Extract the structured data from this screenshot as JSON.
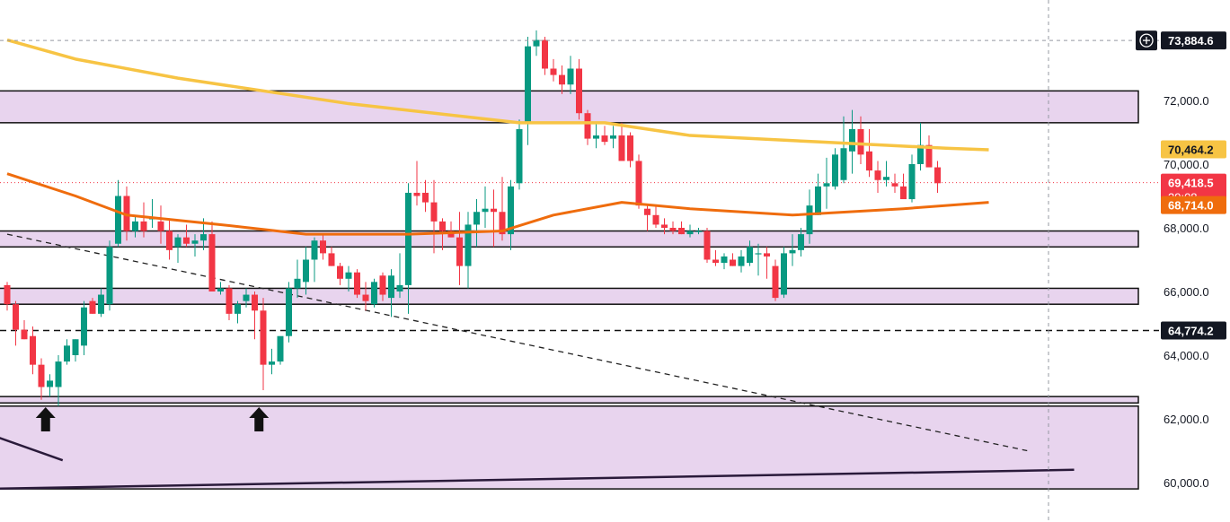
{
  "chart_data": {
    "type": "candlestick",
    "y_axis": {
      "position": "right",
      "ylim": [
        59700,
        74700
      ],
      "ticks": [
        60000,
        62000,
        64000,
        66000,
        68000,
        70000,
        72000
      ]
    },
    "tick_labels": [
      "60,000.0",
      "62,000.0",
      "64,000.0",
      "66,000.0",
      "68,000.0",
      "70,000.0",
      "72,000.0"
    ],
    "grid": false,
    "colors": {
      "up": "#089981",
      "down": "#f23645",
      "ma_slow": "#f7c444",
      "ma_fast": "#ef6c0d",
      "zone_fill": "#e8d4ee",
      "zone_border": "#111111",
      "line_dark": "#2a1a3a"
    },
    "candles": [
      [
        66200,
        66300,
        65400,
        65600
      ],
      [
        65600,
        65700,
        64300,
        64800
      ],
      [
        64800,
        65100,
        64500,
        64500
      ],
      [
        64600,
        64900,
        63400,
        63700
      ],
      [
        63700,
        63900,
        62600,
        63000
      ],
      [
        63000,
        63400,
        62700,
        63200
      ],
      [
        63000,
        64000,
        62400,
        63800
      ],
      [
        63800,
        64500,
        63700,
        64300
      ],
      [
        64000,
        64500,
        63800,
        64500
      ],
      [
        64300,
        65700,
        64000,
        65500
      ],
      [
        65700,
        65800,
        65300,
        65300
      ],
      [
        65300,
        66100,
        65200,
        65900
      ],
      [
        65600,
        67600,
        65400,
        67400
      ],
      [
        67500,
        69500,
        67400,
        69000
      ],
      [
        69000,
        69300,
        67600,
        67900
      ],
      [
        67900,
        68400,
        67700,
        68200
      ],
      [
        68200,
        68800,
        67700,
        67900
      ],
      [
        68300,
        68900,
        68000,
        68300
      ],
      [
        68200,
        68700,
        67500,
        67900
      ],
      [
        67900,
        68300,
        67000,
        67300
      ],
      [
        67400,
        67800,
        66900,
        67700
      ],
      [
        67700,
        68100,
        67400,
        67500
      ],
      [
        67500,
        67800,
        67100,
        67600
      ],
      [
        67600,
        68300,
        67300,
        67800
      ],
      [
        67800,
        68200,
        66000,
        66000
      ],
      [
        66000,
        66300,
        65900,
        66100
      ],
      [
        66100,
        66200,
        65100,
        65300
      ],
      [
        65300,
        65700,
        65000,
        65600
      ],
      [
        65700,
        66100,
        65500,
        65900
      ],
      [
        65900,
        66000,
        64500,
        65400
      ],
      [
        65400,
        65800,
        62900,
        63700
      ],
      [
        63700,
        64200,
        63400,
        63800
      ],
      [
        63800,
        64500,
        63700,
        64600
      ],
      [
        64600,
        66300,
        64400,
        66100
      ],
      [
        66100,
        67000,
        65800,
        66400
      ],
      [
        66300,
        67400,
        65900,
        67000
      ],
      [
        67000,
        67700,
        66300,
        67600
      ],
      [
        67600,
        67800,
        67000,
        67200
      ],
      [
        67200,
        67400,
        66800,
        66800
      ],
      [
        66800,
        66900,
        66200,
        66400
      ],
      [
        66400,
        66800,
        66000,
        66600
      ],
      [
        66600,
        66700,
        65800,
        65900
      ],
      [
        65900,
        66300,
        65400,
        65700
      ],
      [
        65600,
        66400,
        65500,
        66300
      ],
      [
        66500,
        66600,
        65700,
        65900
      ],
      [
        65800,
        66700,
        65200,
        66500
      ],
      [
        66000,
        67200,
        65800,
        66200
      ],
      [
        66200,
        69400,
        65300,
        69100
      ],
      [
        69100,
        70100,
        68700,
        69000
      ],
      [
        69100,
        69500,
        68500,
        68800
      ],
      [
        68800,
        69500,
        67200,
        68200
      ],
      [
        68200,
        68300,
        67300,
        67900
      ],
      [
        67900,
        68200,
        67700,
        67700
      ],
      [
        67700,
        68500,
        66200,
        66800
      ],
      [
        66800,
        68500,
        66100,
        68100
      ],
      [
        68100,
        68900,
        67400,
        68500
      ],
      [
        68500,
        69300,
        68000,
        68600
      ],
      [
        68600,
        69200,
        67400,
        68500
      ],
      [
        68500,
        69600,
        67600,
        67800
      ],
      [
        67800,
        69500,
        67300,
        69300
      ],
      [
        69400,
        71400,
        69200,
        71100
      ],
      [
        71300,
        74000,
        70600,
        73700
      ],
      [
        73700,
        74200,
        73400,
        73900
      ],
      [
        73900,
        74000,
        72800,
        73000
      ],
      [
        73000,
        73300,
        72600,
        72800
      ],
      [
        72800,
        73100,
        72200,
        72500
      ],
      [
        72500,
        73400,
        72200,
        73000
      ],
      [
        73000,
        73300,
        71400,
        71600
      ],
      [
        71600,
        71700,
        70600,
        70800
      ],
      [
        70800,
        71300,
        70500,
        70900
      ],
      [
        70900,
        71200,
        70600,
        70700
      ],
      [
        70800,
        71200,
        70500,
        70900
      ],
      [
        70900,
        71300,
        70200,
        70100
      ],
      [
        70900,
        71000,
        69900,
        70100
      ],
      [
        70100,
        70300,
        68600,
        68700
      ],
      [
        68600,
        68700,
        67900,
        68400
      ],
      [
        68400,
        68700,
        68000,
        68100
      ],
      [
        68100,
        68300,
        67800,
        68000
      ],
      [
        68000,
        68200,
        67800,
        67900
      ],
      [
        68000,
        68200,
        67800,
        67800
      ],
      [
        67800,
        68100,
        67700,
        67900
      ],
      [
        67900,
        68000,
        67800,
        67900
      ],
      [
        67900,
        68000,
        66900,
        67000
      ],
      [
        67000,
        67300,
        66800,
        66900
      ],
      [
        66900,
        67200,
        66700,
        67100
      ],
      [
        67000,
        67200,
        66800,
        66800
      ],
      [
        66800,
        67300,
        66600,
        67100
      ],
      [
        66900,
        67600,
        66800,
        67400
      ],
      [
        67200,
        67500,
        66500,
        67200
      ],
      [
        67200,
        67400,
        66400,
        67100
      ],
      [
        66800,
        67000,
        65700,
        65800
      ],
      [
        65900,
        67400,
        65800,
        67200
      ],
      [
        67200,
        67800,
        66800,
        67300
      ],
      [
        67300,
        68000,
        67100,
        67800
      ],
      [
        67800,
        69200,
        67500,
        68700
      ],
      [
        68400,
        69700,
        68400,
        69300
      ],
      [
        69300,
        70200,
        68600,
        69400
      ],
      [
        69300,
        70500,
        69200,
        70300
      ],
      [
        69500,
        71500,
        69400,
        70500
      ],
      [
        70400,
        71700,
        69700,
        71100
      ],
      [
        71100,
        71500,
        70000,
        70300
      ],
      [
        70400,
        71100,
        69600,
        69800
      ],
      [
        69800,
        70100,
        69100,
        69500
      ],
      [
        69500,
        70100,
        69300,
        69600
      ],
      [
        69400,
        69700,
        69100,
        69300
      ],
      [
        69300,
        69700,
        69000,
        68900
      ],
      [
        68900,
        70300,
        68800,
        70000
      ],
      [
        70000,
        71300,
        69800,
        70600
      ],
      [
        70600,
        70900,
        69900,
        69900
      ],
      [
        69900,
        70100,
        69100,
        69400
      ]
    ],
    "ma_slow": [
      [
        0,
        73900
      ],
      [
        8,
        73300
      ],
      [
        20,
        72700
      ],
      [
        40,
        71900
      ],
      [
        60,
        71300
      ],
      [
        70,
        71300
      ],
      [
        80,
        70900
      ],
      [
        95,
        70700
      ],
      [
        110,
        70500
      ],
      [
        115,
        70450
      ]
    ],
    "ma_fast": [
      [
        0,
        69700
      ],
      [
        8,
        69000
      ],
      [
        14,
        68400
      ],
      [
        25,
        68100
      ],
      [
        35,
        67800
      ],
      [
        47,
        67800
      ],
      [
        58,
        67900
      ],
      [
        64,
        68400
      ],
      [
        72,
        68800
      ],
      [
        80,
        68600
      ],
      [
        92,
        68400
      ],
      [
        105,
        68600
      ],
      [
        115,
        68800
      ]
    ],
    "zones": [
      [
        71300,
        72300
      ],
      [
        67400,
        67900
      ],
      [
        65600,
        66100
      ],
      [
        62500,
        62700
      ],
      [
        59800,
        62400
      ]
    ],
    "horizontal_levels": [
      {
        "value": 64774.2,
        "style": "dashed"
      }
    ],
    "trendlines": [
      {
        "style": "dashed",
        "from": [
          0,
          67800
        ],
        "to": [
          119.5,
          61000
        ]
      },
      {
        "style": "solid",
        "from": [
          -3,
          59800
        ],
        "to": [
          125,
          60400
        ]
      },
      {
        "style": "solid",
        "from": [
          -3,
          61600
        ],
        "to": [
          6.5,
          60700
        ]
      }
    ],
    "arrows": [
      {
        "x": 4.5,
        "y": 62000
      },
      {
        "x": 29.5,
        "y": 62000
      }
    ],
    "crosshair": {
      "x": 122,
      "y": 73884.6
    },
    "price_labels": [
      {
        "value": 73884.6,
        "text": "73,884.6",
        "bg": "#131722",
        "fg": "#ffffff"
      },
      {
        "value": 70464.2,
        "text": "70,464.2",
        "bg": "#f7c444",
        "fg": "#131722"
      },
      {
        "value": 69418.5,
        "text": "69,418.5",
        "sub": "39:08",
        "bg": "#f23645",
        "fg": "#ffffff"
      },
      {
        "value": 68714.0,
        "text": "68,714.0",
        "bg": "#ef6c0d",
        "fg": "#ffffff"
      },
      {
        "value": 64774.2,
        "text": "64,774.2",
        "bg": "#131722",
        "fg": "#ffffff"
      }
    ],
    "last_price": 69418.5
  }
}
